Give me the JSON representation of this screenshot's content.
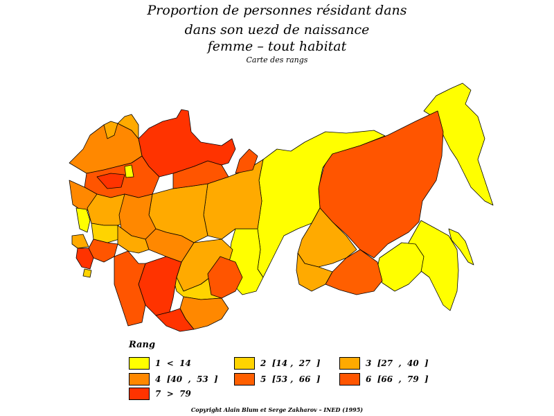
{
  "title": {
    "line1": "Proportion de personnes résidant dans",
    "line2": "dans son uezd de naissance",
    "line3": "femme  –  tout habitat"
  },
  "subtitle": "Carte des rangs",
  "colors": {
    "rank1": "#ffff00",
    "rank2": "#ffd400",
    "rank3": "#ffaa00",
    "rank4": "#ff8800",
    "rank5": "#ff5f00",
    "rank6": "#ff5500",
    "rank7": "#ff3300",
    "border": "#000000"
  },
  "legend": {
    "title": "Rang",
    "items": [
      {
        "label": "1  <  14",
        "rank": 1
      },
      {
        "label": "2  [14 ,  27  ]",
        "rank": 2
      },
      {
        "label": "3  [27  ,  40  ]",
        "rank": 3
      },
      {
        "label": "4  [40  ,  53  ]",
        "rank": 4
      },
      {
        "label": "5  [53 ,  66  ]",
        "rank": 5
      },
      {
        "label": "6  [66  ,  79  ]",
        "rank": 6
      },
      {
        "label": "7  >  79",
        "rank": 7
      }
    ]
  },
  "copyright": "Copyright Alain Blum et Serge Zakharov  –  INED (1995)"
}
